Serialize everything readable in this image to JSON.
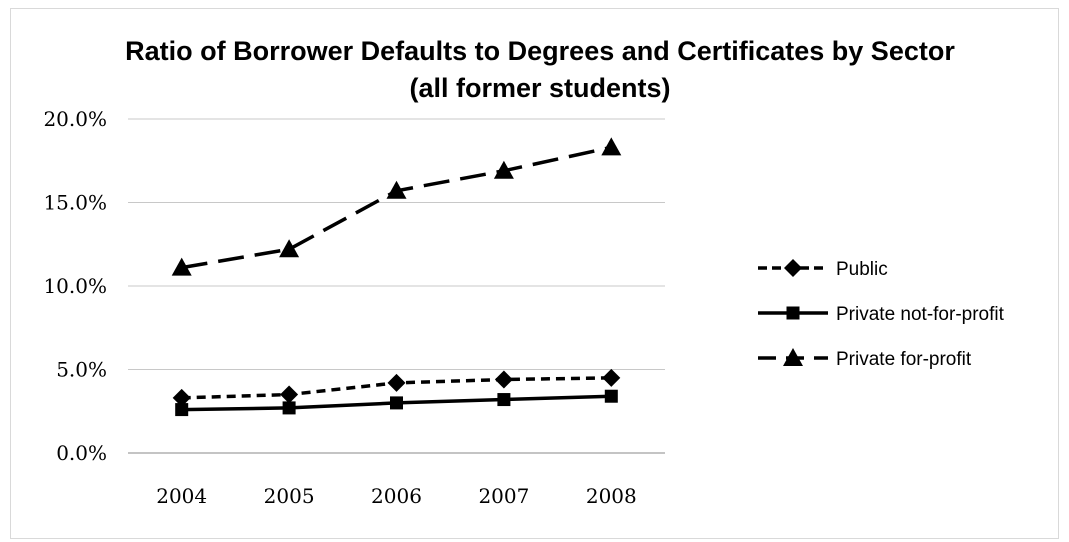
{
  "chart_data": {
    "type": "line",
    "title": "Ratio of Borrower Defaults to Degrees and Certificates by Sector",
    "subtitle": "(all former students)",
    "categories": [
      "2004",
      "2005",
      "2006",
      "2007",
      "2008"
    ],
    "y_ticks": [
      "0.0%",
      "5.0%",
      "10.0%",
      "15.0%",
      "20.0%"
    ],
    "ylim": [
      0,
      20
    ],
    "grid": true,
    "legend_position": "right",
    "series": [
      {
        "name": "Public",
        "values": [
          3.3,
          3.5,
          4.2,
          4.4,
          4.5
        ],
        "marker": "diamond",
        "dash": "short-dash",
        "color": "#000000"
      },
      {
        "name": "Private not-for-profit",
        "values": [
          2.6,
          2.7,
          3.0,
          3.2,
          3.4
        ],
        "marker": "square",
        "dash": "solid",
        "color": "#000000"
      },
      {
        "name": "Private for-profit",
        "values": [
          11.1,
          12.2,
          15.7,
          16.9,
          18.3
        ],
        "marker": "triangle",
        "dash": "long-dash",
        "color": "#000000"
      }
    ]
  }
}
